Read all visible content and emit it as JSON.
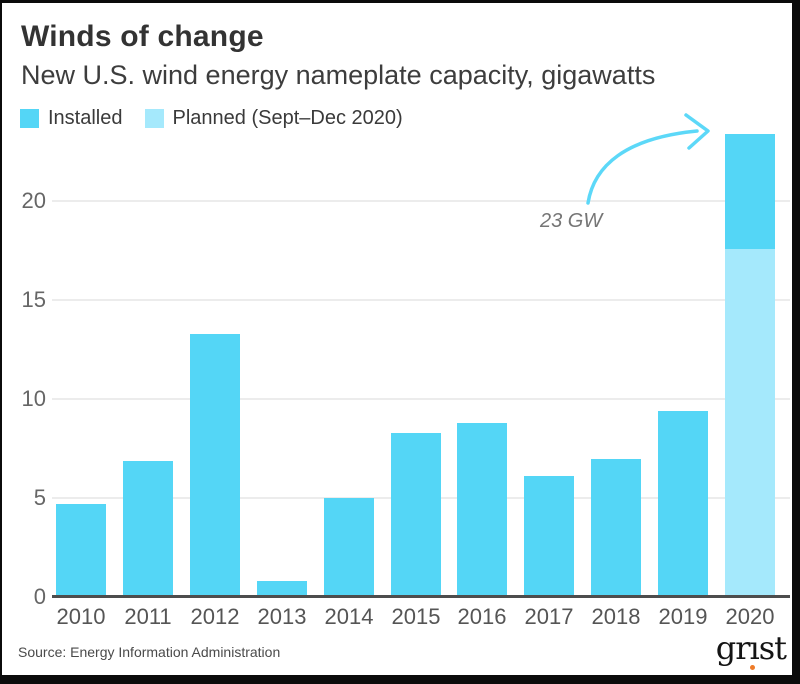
{
  "header": {
    "title": "Winds of change",
    "subtitle": "New U.S. wind energy nameplate capacity, gigawatts"
  },
  "colors": {
    "installed": "#54d6f6",
    "planned": "#a5e9fc",
    "arrow": "#5cd8f8",
    "gridline": "#ececec",
    "axis": "#4d4d4d",
    "logo_dot": "#ee7b28"
  },
  "annotation": "23 GW",
  "footer": {
    "source": "Source: Energy Information Administration",
    "logo": {
      "pre": "gr",
      "i": "ı",
      "post": "st"
    }
  },
  "chart_data": {
    "type": "bar",
    "title": "Winds of change",
    "subtitle": "New U.S. wind energy nameplate capacity, gigawatts",
    "categories": [
      "2010",
      "2011",
      "2012",
      "2013",
      "2014",
      "2015",
      "2016",
      "2017",
      "2018",
      "2019",
      "2020"
    ],
    "series": [
      {
        "name": "Installed",
        "color": "#54d6f6",
        "values": [
          4.7,
          6.9,
          13.3,
          0.8,
          5.0,
          8.3,
          8.8,
          6.1,
          7.0,
          9.4,
          5.8
        ]
      },
      {
        "name": "Planned (Sept–Dec 2020)",
        "color": "#a5e9fc",
        "values": [
          0,
          0,
          0,
          0,
          0,
          0,
          0,
          0,
          0,
          0,
          17.6
        ]
      }
    ],
    "stacking": "2020 only: planned segment drawn at bottom, installed segment on top; 2020 total ≈ 23.4",
    "ylabel": "gigawatts",
    "yticks": [
      0,
      5,
      10,
      15,
      20
    ],
    "ylim": [
      0,
      23.5
    ],
    "grid": true,
    "legend_position": "top-left",
    "annotation": {
      "text": "23 GW",
      "target_category": "2020"
    },
    "source": "Source: Energy Information Administration",
    "logo": "grist"
  }
}
